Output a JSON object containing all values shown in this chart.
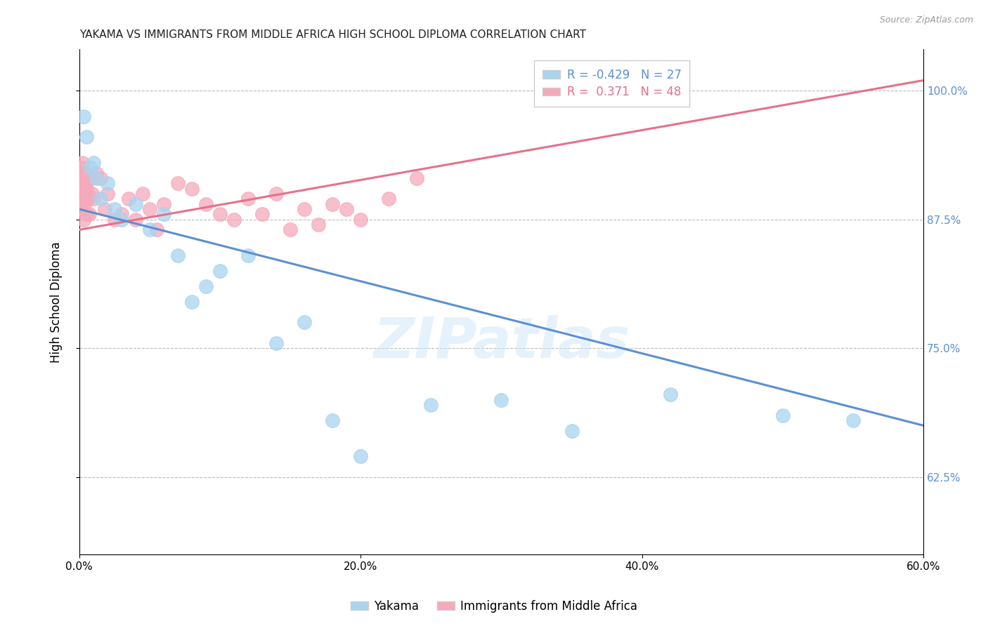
{
  "title": "YAKAMA VS IMMIGRANTS FROM MIDDLE AFRICA HIGH SCHOOL DIPLOMA CORRELATION CHART",
  "source": "Source: ZipAtlas.com",
  "xlabel_vals": [
    0.0,
    20.0,
    40.0,
    60.0
  ],
  "ylabel_vals": [
    62.5,
    75.0,
    87.5,
    100.0
  ],
  "ylabel_label": "High School Diploma",
  "xlim": [
    0.0,
    60.0
  ],
  "ylim": [
    55.0,
    104.0
  ],
  "legend_blue_r": "-0.429",
  "legend_blue_n": "27",
  "legend_pink_r": "0.371",
  "legend_pink_n": "48",
  "legend_label_blue": "Yakama",
  "legend_label_pink": "Immigrants from Middle Africa",
  "watermark": "ZIPatlas",
  "blue_color": "#A8D4F0",
  "pink_color": "#F5AABB",
  "blue_line_color": "#5B8FD4",
  "pink_line_color": "#E8708A",
  "blue_scatter_x": [
    0.3,
    0.5,
    0.8,
    1.0,
    1.2,
    1.5,
    2.0,
    2.5,
    3.0,
    4.0,
    5.0,
    6.0,
    7.0,
    8.0,
    9.0,
    10.0,
    12.0,
    14.0,
    16.0,
    18.0,
    20.0,
    25.0,
    30.0,
    35.0,
    42.0,
    50.0,
    55.0
  ],
  "blue_scatter_y": [
    97.5,
    95.5,
    92.5,
    93.0,
    91.5,
    89.5,
    91.0,
    88.5,
    87.5,
    89.0,
    86.5,
    88.0,
    84.0,
    79.5,
    81.0,
    82.5,
    84.0,
    75.5,
    77.5,
    68.0,
    64.5,
    69.5,
    70.0,
    67.0,
    70.5,
    68.5,
    68.0
  ],
  "pink_scatter_x": [
    0.1,
    0.1,
    0.1,
    0.15,
    0.15,
    0.2,
    0.2,
    0.25,
    0.3,
    0.3,
    0.35,
    0.4,
    0.45,
    0.5,
    0.5,
    0.6,
    0.7,
    0.8,
    0.9,
    1.0,
    1.2,
    1.5,
    1.8,
    2.0,
    2.5,
    3.0,
    3.5,
    4.0,
    4.5,
    5.0,
    5.5,
    6.0,
    7.0,
    8.0,
    9.0,
    10.0,
    11.0,
    12.0,
    13.0,
    14.0,
    15.0,
    16.0,
    17.0,
    18.0,
    19.0,
    20.0,
    22.0,
    24.0
  ],
  "pink_scatter_y": [
    88.5,
    89.5,
    91.0,
    90.0,
    92.5,
    89.0,
    93.0,
    91.5,
    87.5,
    90.5,
    89.0,
    92.0,
    91.0,
    88.0,
    90.5,
    89.5,
    88.0,
    91.5,
    90.0,
    89.5,
    92.0,
    91.5,
    88.5,
    90.0,
    87.5,
    88.0,
    89.5,
    87.5,
    90.0,
    88.5,
    86.5,
    89.0,
    91.0,
    90.5,
    89.0,
    88.0,
    87.5,
    89.5,
    88.0,
    90.0,
    86.5,
    88.5,
    87.0,
    89.0,
    88.5,
    87.5,
    89.5,
    91.5
  ],
  "blue_trend_x": [
    0.0,
    60.0
  ],
  "blue_trend_y": [
    88.5,
    67.5
  ],
  "pink_trend_x": [
    0.0,
    60.0
  ],
  "pink_trend_y": [
    86.5,
    101.0
  ],
  "background_color": "#FFFFFF",
  "grid_color": "#BBBBBB"
}
